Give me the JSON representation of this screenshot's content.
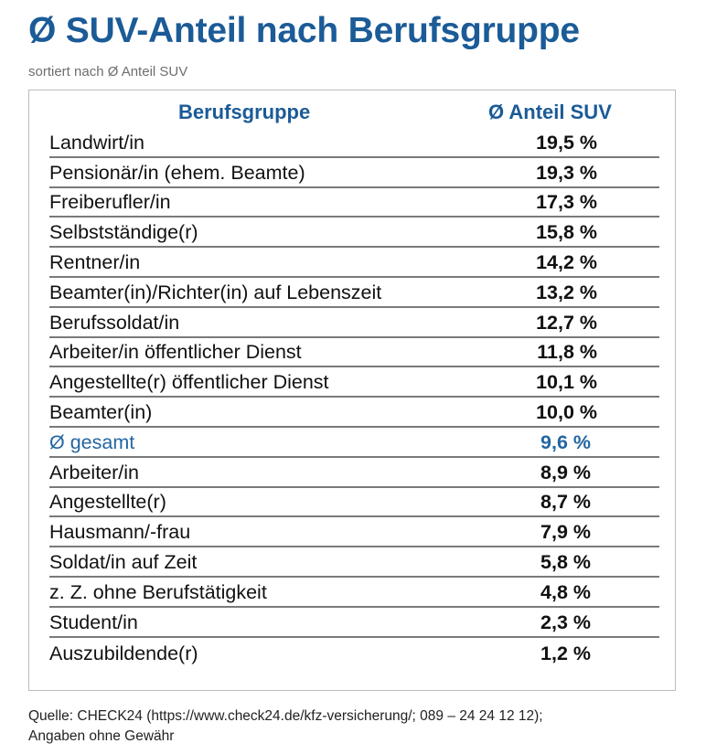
{
  "title": "Ø SUV-Anteil nach Berufsgruppe",
  "subtitle": "sortiert nach Ø Anteil SUV",
  "colors": {
    "title": "#1b5b97",
    "header": "#1b5b97",
    "highlight": "#2466a2",
    "text": "#111111",
    "rule": "#7a7a7a",
    "border": "#bdbdbd"
  },
  "chart_data": {
    "type": "table",
    "title": "Ø SUV-Anteil nach Berufsgruppe",
    "subtitle": "sortiert nach Ø Anteil SUV",
    "columns": [
      "Berufsgruppe",
      "Ø Anteil SUV"
    ],
    "rows": [
      {
        "label": "Landwirt/in",
        "value": 19.5,
        "display": "19,5 %"
      },
      {
        "label": "Pensionär/in (ehem. Beamte)",
        "value": 19.3,
        "display": "19,3 %"
      },
      {
        "label": "Freiberufler/in",
        "value": 17.3,
        "display": "17,3 %"
      },
      {
        "label": "Selbstständige(r)",
        "value": 15.8,
        "display": "15,8 %"
      },
      {
        "label": "Rentner/in",
        "value": 14.2,
        "display": "14,2 %"
      },
      {
        "label": "Beamter(in)/Richter(in) auf Lebenszeit",
        "value": 13.2,
        "display": "13,2 %"
      },
      {
        "label": "Berufssoldat/in",
        "value": 12.7,
        "display": "12,7 %"
      },
      {
        "label": "Arbeiter/in öffentlicher Dienst",
        "value": 11.8,
        "display": "11,8 %"
      },
      {
        "label": "Angestellte(r) öffentlicher Dienst",
        "value": 10.1,
        "display": "10,1 %"
      },
      {
        "label": "Beamter(in)",
        "value": 10.0,
        "display": "10,0 %"
      },
      {
        "label": "Ø gesamt",
        "value": 9.6,
        "display": "9,6 %",
        "highlight": true
      },
      {
        "label": "Arbeiter/in",
        "value": 8.9,
        "display": "8,9 %"
      },
      {
        "label": "Angestellte(r)",
        "value": 8.7,
        "display": "8,7 %"
      },
      {
        "label": "Hausmann/-frau",
        "value": 7.9,
        "display": "7,9 %"
      },
      {
        "label": "Soldat/in auf Zeit",
        "value": 5.8,
        "display": "5,8 %"
      },
      {
        "label": "z. Z. ohne Berufstätigkeit",
        "value": 4.8,
        "display": "4,8 %"
      },
      {
        "label": "Student/in",
        "value": 2.3,
        "display": "2,3 %"
      },
      {
        "label": "Auszubildende(r)",
        "value": 1.2,
        "display": "1,2 %"
      }
    ]
  },
  "source": {
    "line1": "Quelle: CHECK24 (https://www.check24.de/kfz-versicherung/; 089 – 24 24 12 12);",
    "line2": "Angaben ohne Gewähr"
  }
}
